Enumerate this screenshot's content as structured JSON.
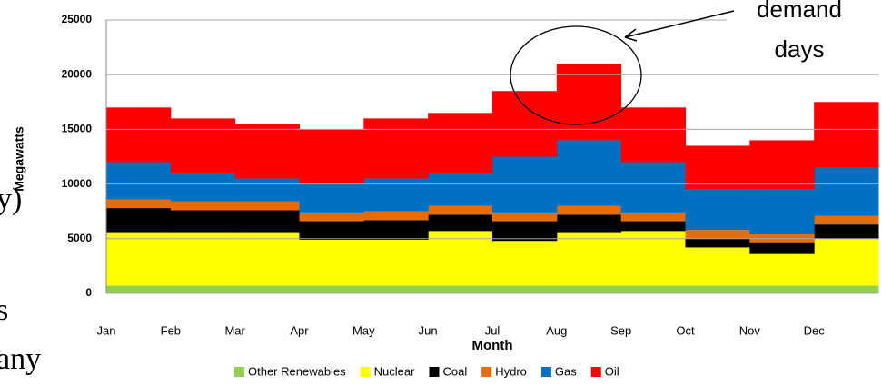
{
  "chart_data": {
    "type": "stacked_area",
    "x_label": "Month",
    "y_label": "Megawatts",
    "categories": [
      "Jan",
      "Feb",
      "Mar",
      "Apr",
      "May",
      "Jun",
      "Jul",
      "Aug",
      "Sep",
      "Oct",
      "Nov",
      "Dec"
    ],
    "series": [
      {
        "name": "Other Renewables",
        "color": "#92d050",
        "values": [
          700,
          700,
          700,
          700,
          700,
          700,
          700,
          700,
          700,
          700,
          700,
          700
        ]
      },
      {
        "name": "Nuclear",
        "color": "#ffff00",
        "values": [
          4900,
          4900,
          4900,
          4200,
          4200,
          5000,
          4100,
          4900,
          5000,
          3500,
          2900,
          4300
        ]
      },
      {
        "name": "Coal",
        "color": "#000000",
        "values": [
          2200,
          2000,
          2000,
          1700,
          1800,
          1500,
          1800,
          1600,
          900,
          800,
          1000,
          1300
        ]
      },
      {
        "name": "Hydro",
        "color": "#e46c0a",
        "values": [
          800,
          800,
          800,
          800,
          800,
          800,
          800,
          800,
          800,
          800,
          800,
          800
        ]
      },
      {
        "name": "Gas",
        "color": "#0070c0",
        "values": [
          3400,
          2600,
          2100,
          2600,
          3000,
          3000,
          5100,
          6000,
          4600,
          3700,
          4100,
          4400
        ]
      },
      {
        "name": "Oil",
        "color": "#ff0000",
        "values": [
          5000,
          5000,
          5000,
          5000,
          5500,
          5500,
          6000,
          7000,
          5000,
          4000,
          4500,
          6000
        ]
      }
    ],
    "ylim": [
      0,
      25000
    ],
    "yticks": [
      0,
      5000,
      10000,
      15000,
      20000,
      25000
    ],
    "grid": true,
    "legend": "bottom",
    "annotations": [
      "demand",
      "days"
    ],
    "background_fragments": [
      "y)",
      "s",
      "any"
    ]
  }
}
